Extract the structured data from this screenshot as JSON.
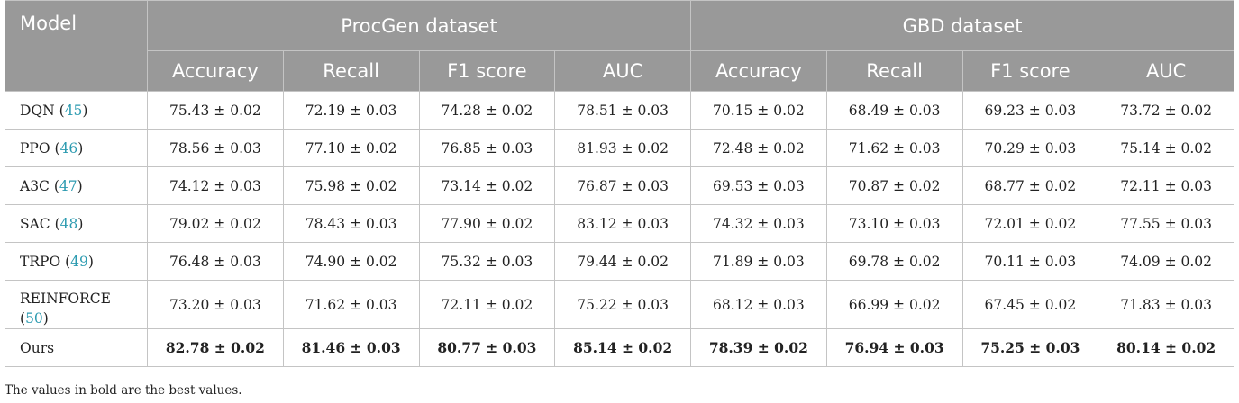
{
  "table": {
    "model_header": "Model",
    "groups": [
      "ProcGen dataset",
      "GBD dataset"
    ],
    "metrics": [
      "Accuracy",
      "Recall",
      "F1 score",
      "AUC",
      "Accuracy",
      "Recall",
      "F1 score",
      "AUC"
    ],
    "rows": [
      {
        "name": "DQN",
        "ref": "45",
        "values": [
          "75.43 ± 0.02",
          "72.19 ± 0.03",
          "74.28 ± 0.02",
          "78.51 ± 0.03",
          "70.15 ± 0.02",
          "68.49 ± 0.03",
          "69.23 ± 0.03",
          "73.72 ± 0.02"
        ]
      },
      {
        "name": "PPO",
        "ref": "46",
        "values": [
          "78.56 ± 0.03",
          "77.10 ± 0.02",
          "76.85 ± 0.03",
          "81.93 ± 0.02",
          "72.48 ± 0.02",
          "71.62 ± 0.03",
          "70.29 ± 0.03",
          "75.14 ± 0.02"
        ]
      },
      {
        "name": "A3C",
        "ref": "47",
        "values": [
          "74.12 ± 0.03",
          "75.98 ± 0.02",
          "73.14 ± 0.02",
          "76.87 ± 0.03",
          "69.53 ± 0.03",
          "70.87 ± 0.02",
          "68.77 ± 0.02",
          "72.11 ± 0.03"
        ]
      },
      {
        "name": "SAC",
        "ref": "48",
        "values": [
          "79.02 ± 0.02",
          "78.43 ± 0.03",
          "77.90 ± 0.02",
          "83.12 ± 0.03",
          "74.32 ± 0.03",
          "73.10 ± 0.03",
          "72.01 ± 0.02",
          "77.55 ± 0.03"
        ]
      },
      {
        "name": "TRPO",
        "ref": "49",
        "values": [
          "76.48 ± 0.03",
          "74.90 ± 0.02",
          "75.32 ± 0.03",
          "79.44 ± 0.02",
          "71.89 ± 0.03",
          "69.78 ± 0.02",
          "70.11 ± 0.03",
          "74.09 ± 0.02"
        ]
      },
      {
        "name": "REINFORCE",
        "ref": "50",
        "values": [
          "73.20 ± 0.03",
          "71.62 ± 0.03",
          "72.11 ± 0.02",
          "75.22 ± 0.03",
          "68.12 ± 0.03",
          "66.99 ± 0.02",
          "67.45 ± 0.02",
          "71.83 ± 0.03"
        ]
      },
      {
        "name": "Ours",
        "ref": "",
        "values": [
          "82.78 ± 0.02",
          "81.46 ± 0.03",
          "80.77 ± 0.03",
          "85.14 ± 0.02",
          "78.39 ± 0.02",
          "76.94 ± 0.03",
          "75.25 ± 0.03",
          "80.14 ± 0.02"
        ]
      }
    ]
  },
  "footnote": "The values in bold are the best values."
}
